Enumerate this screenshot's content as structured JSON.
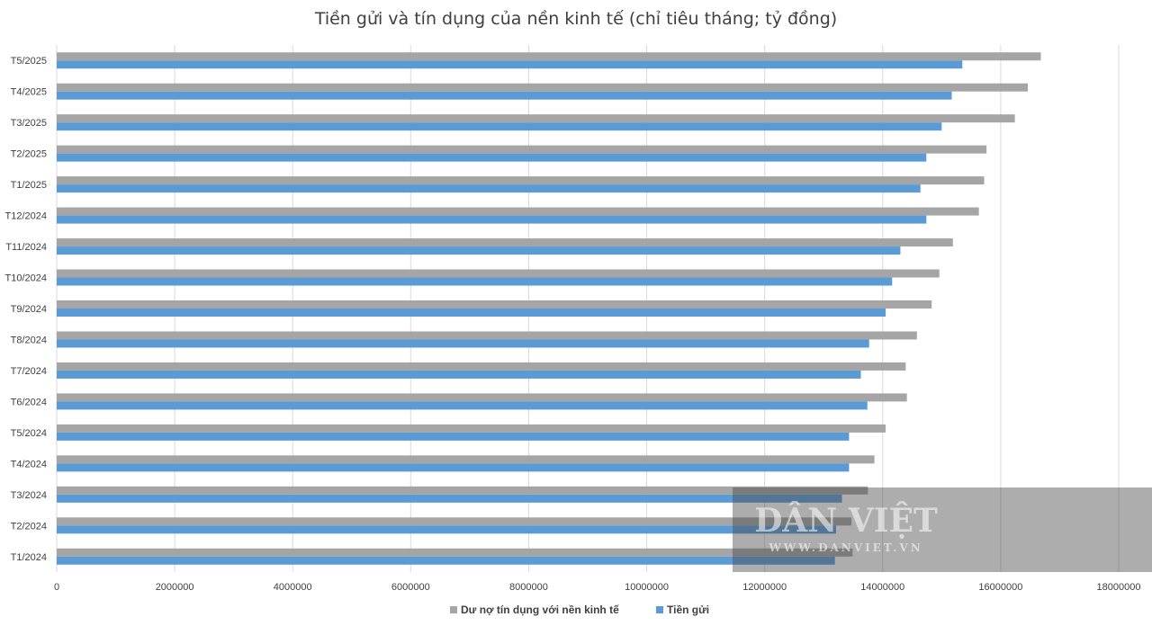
{
  "chart_data": {
    "type": "bar",
    "orientation": "horizontal",
    "title": "Tiền gửi và tín dụng của nền kinh tế (chỉ tiêu tháng; tỷ đồng)",
    "categories": [
      "T5/2025",
      "T4/2025",
      "T3/2025",
      "T2/2025",
      "T1/2025",
      "T12/2024",
      "T11/2024",
      "T10/2024",
      "T9/2024",
      "T8/2024",
      "T7/2024",
      "T6/2024",
      "T5/2024",
      "T4/2024",
      "T3/2024",
      "T2/2024",
      "T1/2024"
    ],
    "series": [
      {
        "name": "Dư nợ tín dụng với nền kinh tế",
        "color": "#a5a5a5",
        "values": [
          16680000,
          16460000,
          16240000,
          15760000,
          15720000,
          15630000,
          15190000,
          14960000,
          14830000,
          14580000,
          14390000,
          14410000,
          14050000,
          13860000,
          13750000,
          13470000,
          13490000
        ]
      },
      {
        "name": "Tiền gửi",
        "color": "#5b9bd5",
        "values": [
          15350000,
          15170000,
          15000000,
          14740000,
          14640000,
          14740000,
          14300000,
          14160000,
          14050000,
          13770000,
          13630000,
          13740000,
          13430000,
          13430000,
          13310000,
          13210000,
          13190000
        ]
      }
    ],
    "xlim": [
      0,
      18000000
    ],
    "xticks": [
      "0",
      "2000000",
      "4000000",
      "6000000",
      "8000000",
      "10000000",
      "12000000",
      "14000000",
      "16000000",
      "18000000"
    ],
    "grid": "vertical",
    "legend_position": "bottom"
  },
  "watermark": {
    "brand": "DÂN VIỆT",
    "url": "WWW.DANVIET.VN"
  }
}
